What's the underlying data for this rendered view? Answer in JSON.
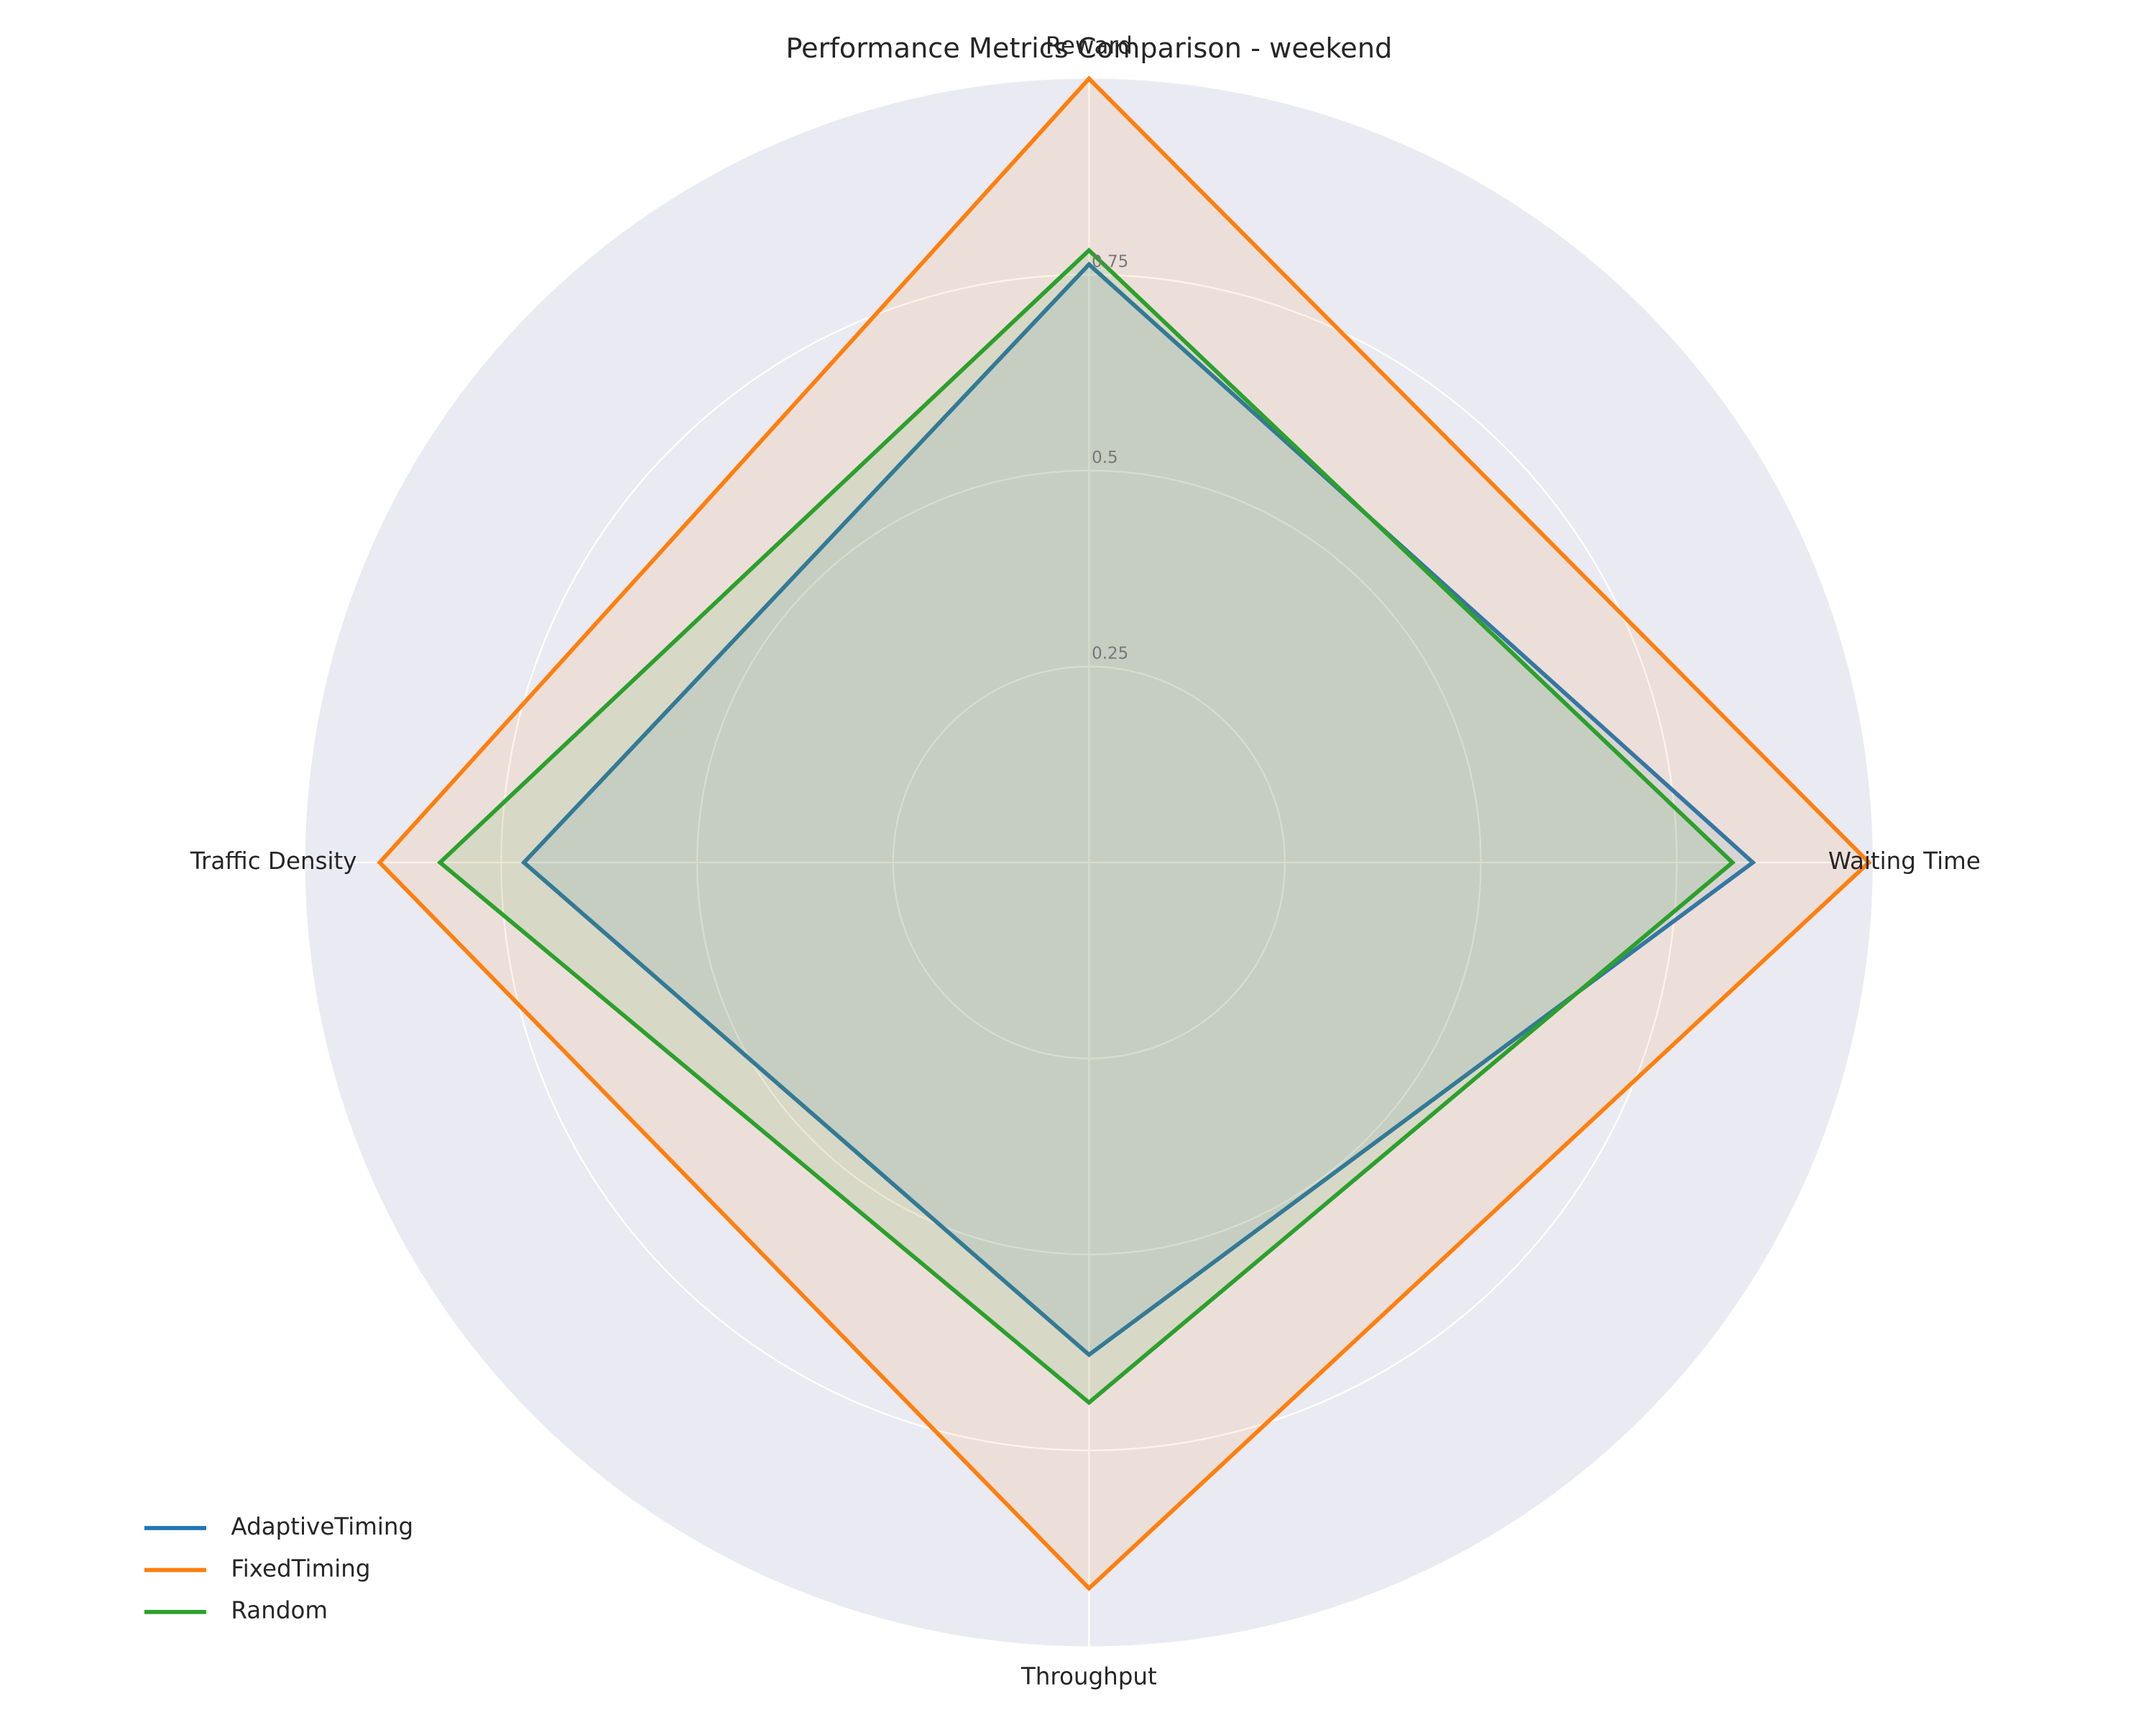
{
  "chart_data": {
    "type": "radar",
    "title": "Performance Metrics Comparison - weekend",
    "categories": [
      "Reward",
      "Waiting Time",
      "Throughput",
      "Traffic Density"
    ],
    "series": [
      {
        "name": "AdaptiveTiming",
        "color": "#1f77b4",
        "values": [
          0.763,
          0.847,
          0.628,
          0.721
        ]
      },
      {
        "name": "FixedTiming",
        "color": "#ff7f0e",
        "values": [
          1.0,
          0.995,
          0.926,
          0.905
        ]
      },
      {
        "name": "Random",
        "color": "#2ca02c",
        "values": [
          0.781,
          0.821,
          0.689,
          0.828
        ]
      }
    ],
    "ylim": [
      0,
      1
    ],
    "yticks": [
      0.25,
      0.5,
      0.75
    ],
    "grid": true,
    "legend": "lower left"
  }
}
